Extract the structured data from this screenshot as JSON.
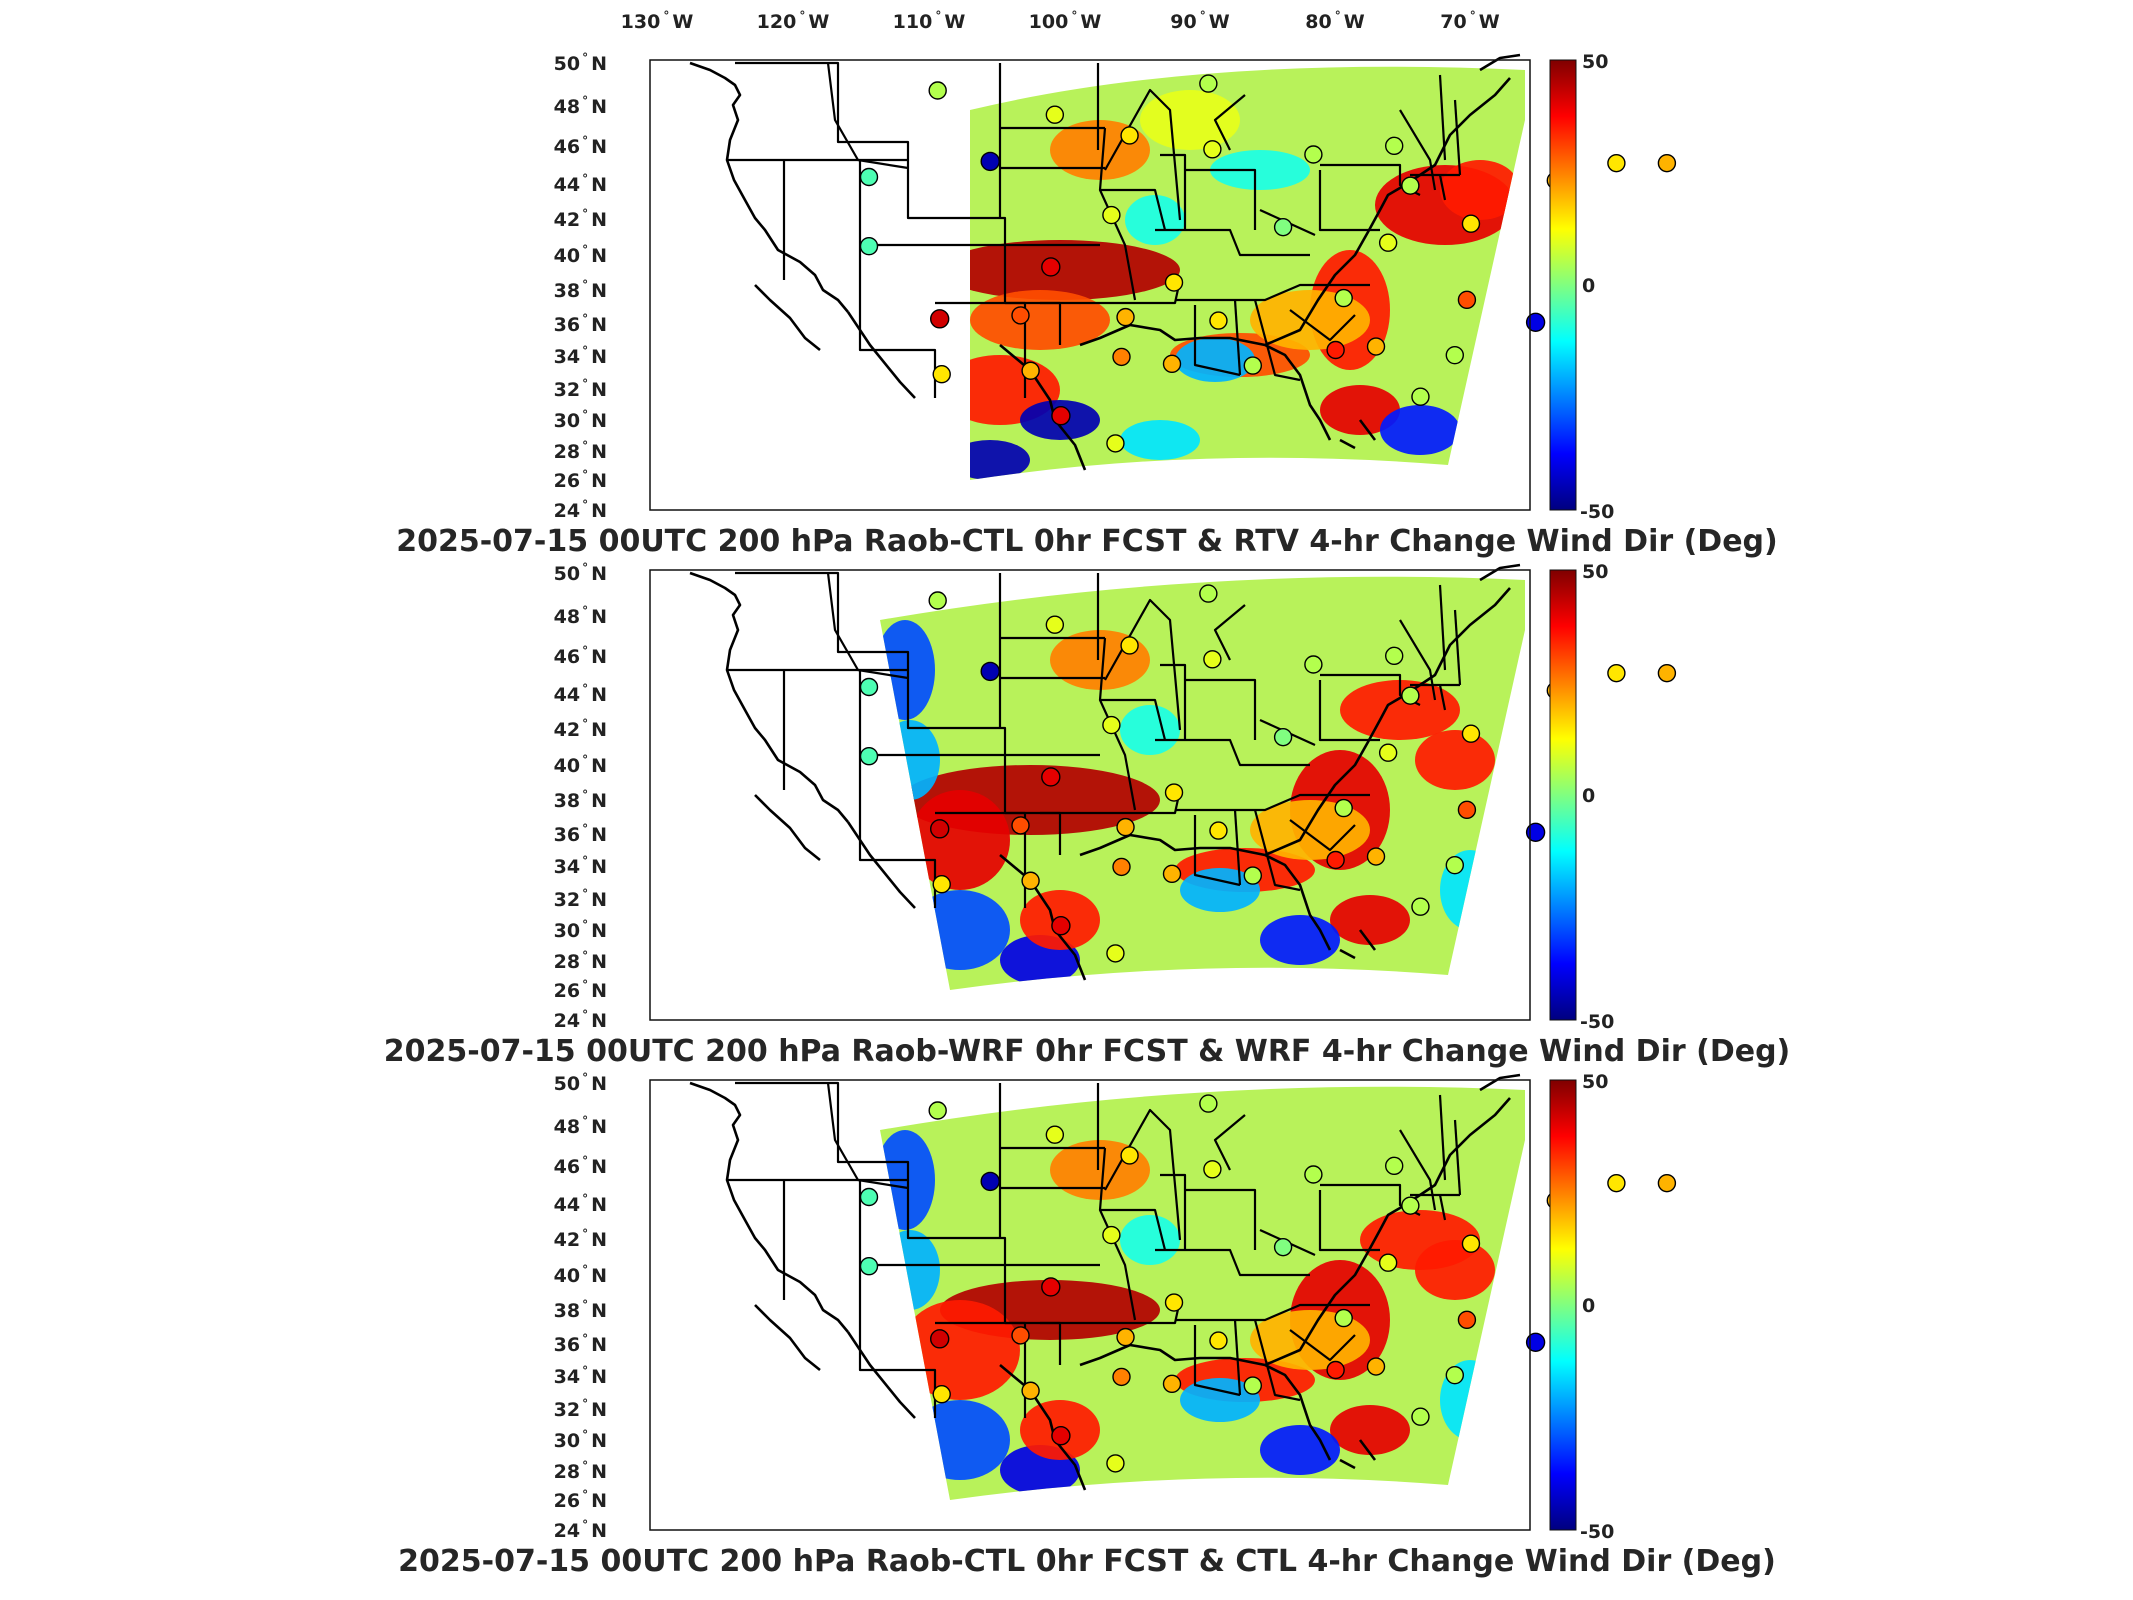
{
  "longitude_ticks": [
    "130",
    "120",
    "110",
    "100",
    "90",
    "80",
    "70"
  ],
  "longitude_suffix": "W",
  "latitude_ticks": [
    "50",
    "48",
    "46",
    "44",
    "42",
    "40",
    "38",
    "36",
    "34",
    "32",
    "30",
    "28",
    "26",
    "24"
  ],
  "latitude_suffix": "N",
  "colorbar": {
    "max_label": "50",
    "mid_label": "0",
    "min_label": "-50",
    "colors": [
      "#00007f",
      "#0000ff",
      "#0080ff",
      "#00ffff",
      "#80ff80",
      "#ffff00",
      "#ff8000",
      "#ff0000",
      "#7f0000"
    ]
  },
  "panels": [
    {
      "title": "2025-07-15 00UTC 200 hPa Raob-CTL 0hr FCST & RTV 4-hr Change Wind Dir (Deg)"
    },
    {
      "title": "2025-07-15 00UTC 200 hPa Raob-WRF 0hr FCST & WRF 4-hr Change Wind Dir (Deg)"
    },
    {
      "title": "2025-07-15 00UTC 200 hPa Raob-CTL 0hr FCST & CTL 4-hr Change Wind Dir (Deg)"
    }
  ],
  "chart_data": {
    "type": "map",
    "variable": "Change Wind Dir (Deg)",
    "level": "200 hPa",
    "valid_time": "2025-07-15 00UTC",
    "color_range": [
      -50,
      50
    ],
    "stations": [
      {
        "lon": -106.6,
        "lat": 48.2,
        "value": 5
      },
      {
        "lon": -100.8,
        "lat": 46.8,
        "value": 10
      },
      {
        "lon": -97.1,
        "lat": 45.6,
        "value": 15
      },
      {
        "lon": -104.0,
        "lat": 44.1,
        "value": -45
      },
      {
        "lon": -110.0,
        "lat": 43.2,
        "value": -5
      },
      {
        "lon": -93.2,
        "lat": 48.6,
        "value": 5
      },
      {
        "lon": -93.0,
        "lat": 44.8,
        "value": 10
      },
      {
        "lon": -88.0,
        "lat": 44.5,
        "value": 5
      },
      {
        "lon": -84.0,
        "lat": 45.0,
        "value": 5
      },
      {
        "lon": -83.2,
        "lat": 42.7,
        "value": 5
      },
      {
        "lon": -98.0,
        "lat": 41.0,
        "value": 10
      },
      {
        "lon": -89.5,
        "lat": 40.3,
        "value": 0
      },
      {
        "lon": -84.3,
        "lat": 39.4,
        "value": 10
      },
      {
        "lon": -80.2,
        "lat": 40.5,
        "value": 15
      },
      {
        "lon": -76.0,
        "lat": 43.0,
        "value": 20
      },
      {
        "lon": -73.0,
        "lat": 44.0,
        "value": 15
      },
      {
        "lon": -70.5,
        "lat": 44.0,
        "value": 20
      },
      {
        "lon": -75.5,
        "lat": 38.8,
        "value": -45
      },
      {
        "lon": -110.0,
        "lat": 39.2,
        "value": -5
      },
      {
        "lon": -101.0,
        "lat": 38.0,
        "value": 40
      },
      {
        "lon": -94.9,
        "lat": 37.1,
        "value": 15
      },
      {
        "lon": -97.3,
        "lat": 35.1,
        "value": 20
      },
      {
        "lon": -92.7,
        "lat": 34.9,
        "value": 15
      },
      {
        "lon": -102.5,
        "lat": 35.2,
        "value": 30
      },
      {
        "lon": -106.5,
        "lat": 35.0,
        "value": 42
      },
      {
        "lon": -86.5,
        "lat": 36.2,
        "value": 5
      },
      {
        "lon": -80.4,
        "lat": 36.1,
        "value": 30
      },
      {
        "lon": -77.0,
        "lat": 34.8,
        "value": -40
      },
      {
        "lon": -97.5,
        "lat": 32.8,
        "value": 25
      },
      {
        "lon": -95.0,
        "lat": 32.4,
        "value": 20
      },
      {
        "lon": -91.0,
        "lat": 32.3,
        "value": 5
      },
      {
        "lon": -86.9,
        "lat": 33.2,
        "value": 35
      },
      {
        "lon": -84.9,
        "lat": 33.4,
        "value": 20
      },
      {
        "lon": -81.0,
        "lat": 32.9,
        "value": 5
      },
      {
        "lon": -102.0,
        "lat": 32.0,
        "value": 20
      },
      {
        "lon": -106.4,
        "lat": 31.8,
        "value": 15
      },
      {
        "lon": -97.8,
        "lat": 27.8,
        "value": 10
      },
      {
        "lon": -100.5,
        "lat": 29.4,
        "value": 40
      },
      {
        "lon": -82.7,
        "lat": 30.5,
        "value": 5
      }
    ]
  }
}
